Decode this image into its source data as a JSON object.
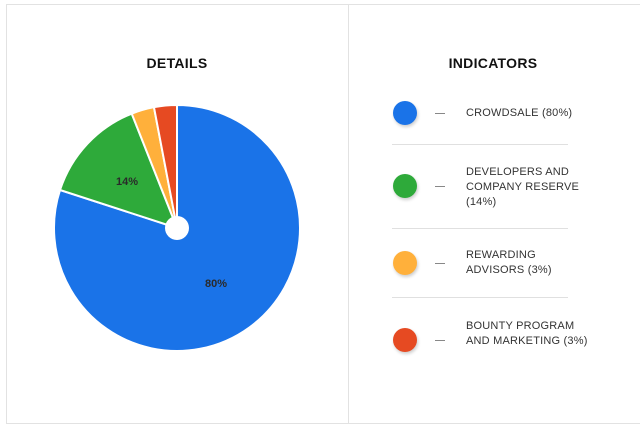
{
  "details_title": "DETAILS",
  "indicators_title": "INDICATORS",
  "chart_data": {
    "type": "pie",
    "title": "DETAILS",
    "categories": [
      "CROWDSALE",
      "DEVELOPERS AND COMPANY RESERVE",
      "REWARDING ADVISORS",
      "BOUNTY PROGRAM AND MARKETING"
    ],
    "values": [
      80,
      14,
      3,
      3
    ],
    "colors": [
      "#1a73e8",
      "#2eaa3a",
      "#ffb03b",
      "#e64a22"
    ],
    "data_labels": [
      "80%",
      "14%",
      "",
      ""
    ],
    "legend_placement": "right"
  },
  "legend": [
    {
      "label": "CROWDSALE (80%)",
      "color": "#1a73e8"
    },
    {
      "label": "DEVELOPERS AND COMPANY RESERVE (14%)",
      "color": "#2eaa3a"
    },
    {
      "label": "REWARDING ADVISORS (3%)",
      "color": "#ffb03b"
    },
    {
      "label": "BOUNTY PROGRAM AND MARKETING (3%)",
      "color": "#e64a22"
    }
  ]
}
